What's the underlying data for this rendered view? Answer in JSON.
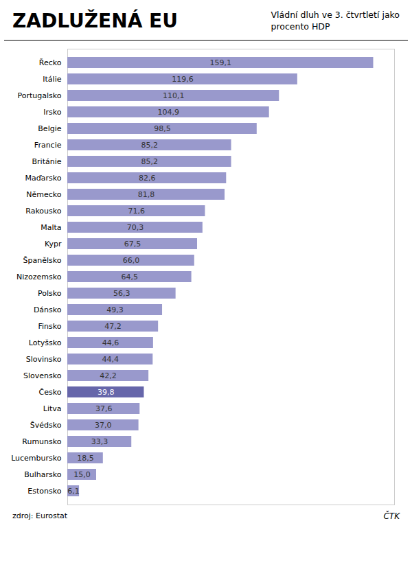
{
  "chart_data": {
    "type": "bar",
    "orientation": "horizontal",
    "title": "ZADLUŽENÁ EU",
    "subtitle": "Vládní dluh ve 3. čtvrtletí jako\nprocento HDP",
    "annotations": [
      "zdroj: Eurostat",
      "ČTK"
    ],
    "categories": [
      "Řecko",
      "Itálie",
      "Portugalsko",
      "Irsko",
      "Belgie",
      "Francie",
      "Británie",
      "Maďarsko",
      "Německo",
      "Rakousko",
      "Malta",
      "Kypr",
      "Španělsko",
      "Nizozemsko",
      "Polsko",
      "Dánsko",
      "Finsko",
      "Lotyšsko",
      "Slovinsko",
      "Slovensko",
      "Česko",
      "Litva",
      "Švédsko",
      "Rumunsko",
      "Lucembursko",
      "Bulharsko",
      "Estonsko"
    ],
    "values": [
      159.1,
      119.6,
      110.1,
      104.9,
      98.5,
      85.2,
      85.2,
      82.6,
      81.8,
      71.6,
      70.3,
      67.5,
      66.0,
      64.5,
      56.3,
      49.3,
      47.2,
      44.6,
      44.4,
      42.2,
      39.8,
      37.6,
      37.0,
      33.3,
      18.5,
      15.0,
      6.1
    ],
    "value_labels": [
      "159,1",
      "119,6",
      "110,1",
      "104,9",
      "98,5",
      "85,2",
      "85,2",
      "82,6",
      "81,8",
      "71,6",
      "70,3",
      "67,5",
      "66,0",
      "64,5",
      "56,3",
      "49,3",
      "47,2",
      "44,6",
      "44,4",
      "42,2",
      "39,8",
      "37,6",
      "37,0",
      "33,3",
      "18,5",
      "15,0",
      "6,1"
    ],
    "data_labels": true,
    "colors": [
      "#9999cc",
      "#9999cc",
      "#9999cc",
      "#9999cc",
      "#9999cc",
      "#9999cc",
      "#9999cc",
      "#9999cc",
      "#9999cc",
      "#9999cc",
      "#9999cc",
      "#9999cc",
      "#9999cc",
      "#9999cc",
      "#9999cc",
      "#9999cc",
      "#9999cc",
      "#9999cc",
      "#9999cc",
      "#9999cc",
      "#6666aa",
      "#9999cc",
      "#9999cc",
      "#9999cc",
      "#9999cc",
      "#9999cc",
      "#9999cc"
    ],
    "xlim": [
      0,
      170
    ],
    "tick_labels": "y",
    "grid": false
  }
}
